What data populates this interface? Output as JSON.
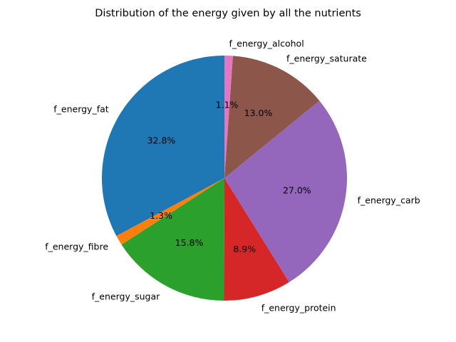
{
  "chart_data": {
    "type": "pie",
    "title": "Distribution of the energy given by all the nutrients",
    "start_angle_deg": 90,
    "direction": "counterclockwise",
    "slices": [
      {
        "label": "f_energy_fat",
        "value": 32.8,
        "pct_label": "32.8%",
        "color": "#1f77b4"
      },
      {
        "label": "f_energy_fibre",
        "value": 1.3,
        "pct_label": "1.3%",
        "color": "#ff7f0e"
      },
      {
        "label": "f_energy_sugar",
        "value": 15.8,
        "pct_label": "15.8%",
        "color": "#2ca02c"
      },
      {
        "label": "f_energy_protein",
        "value": 8.9,
        "pct_label": "8.9%",
        "color": "#d62728"
      },
      {
        "label": "f_energy_carb",
        "value": 27.0,
        "pct_label": "27.0%",
        "color": "#9467bd"
      },
      {
        "label": "f_energy_saturate",
        "value": 13.0,
        "pct_label": "13.0%",
        "color": "#8c564b"
      },
      {
        "label": "f_energy_alcohol",
        "value": 1.1,
        "pct_label": "1.1%",
        "color": "#e377c2"
      }
    ]
  }
}
